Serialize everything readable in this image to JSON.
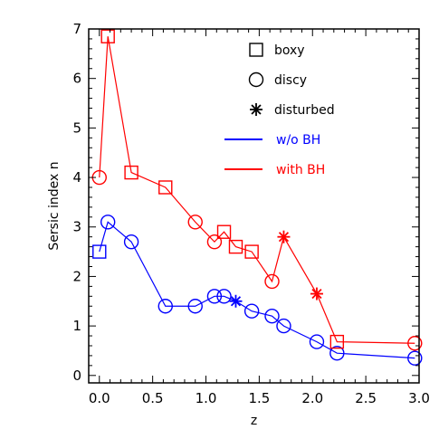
{
  "chart_data": {
    "type": "scatter",
    "xlabel": "z",
    "ylabel": "Sersic index n",
    "xlim": [
      -0.1,
      3.0
    ],
    "ylim": [
      -0.15,
      7.0
    ],
    "xticks": [
      "0.0",
      "0.5",
      "1.0",
      "1.5",
      "2.0",
      "2.5",
      "3.0"
    ],
    "yticks": [
      "0",
      "1",
      "2",
      "3",
      "4",
      "5",
      "6",
      "7"
    ],
    "grid": false,
    "legend": {
      "position": "top-right",
      "entries": [
        {
          "marker": "square",
          "label": "boxy",
          "color": "#000000"
        },
        {
          "marker": "circle",
          "label": "discy",
          "color": "#000000"
        },
        {
          "marker": "asterisk",
          "label": "disturbed",
          "color": "#000000"
        },
        {
          "line": true,
          "label": "w/o BH",
          "color": "#0000ff"
        },
        {
          "line": true,
          "label": "with BH",
          "color": "#ff0000"
        }
      ]
    },
    "series": [
      {
        "name": "w/o BH",
        "color": "#0000ff",
        "points": [
          {
            "x": 0.0,
            "y": 2.5,
            "marker": "square"
          },
          {
            "x": 0.08,
            "y": 3.1,
            "marker": "circle"
          },
          {
            "x": 0.3,
            "y": 2.7,
            "marker": "circle"
          },
          {
            "x": 0.62,
            "y": 1.4,
            "marker": "circle"
          },
          {
            "x": 0.9,
            "y": 1.4,
            "marker": "circle"
          },
          {
            "x": 1.08,
            "y": 1.6,
            "marker": "circle"
          },
          {
            "x": 1.17,
            "y": 1.6,
            "marker": "circle"
          },
          {
            "x": 1.28,
            "y": 1.5,
            "marker": "asterisk"
          },
          {
            "x": 1.43,
            "y": 1.3,
            "marker": "circle"
          },
          {
            "x": 1.62,
            "y": 1.2,
            "marker": "circle"
          },
          {
            "x": 1.73,
            "y": 1.0,
            "marker": "circle"
          },
          {
            "x": 2.04,
            "y": 0.68,
            "marker": "circle"
          },
          {
            "x": 2.23,
            "y": 0.45,
            "marker": "circle"
          },
          {
            "x": 2.96,
            "y": 0.35,
            "marker": "circle"
          }
        ]
      },
      {
        "name": "with BH",
        "color": "#ff0000",
        "points": [
          {
            "x": 0.0,
            "y": 4.0,
            "marker": "circle"
          },
          {
            "x": 0.08,
            "y": 6.85,
            "marker": "square"
          },
          {
            "x": 0.3,
            "y": 4.1,
            "marker": "square"
          },
          {
            "x": 0.62,
            "y": 3.8,
            "marker": "square"
          },
          {
            "x": 0.9,
            "y": 3.1,
            "marker": "circle"
          },
          {
            "x": 1.08,
            "y": 2.7,
            "marker": "circle"
          },
          {
            "x": 1.17,
            "y": 2.9,
            "marker": "square"
          },
          {
            "x": 1.28,
            "y": 2.6,
            "marker": "square"
          },
          {
            "x": 1.43,
            "y": 2.5,
            "marker": "square"
          },
          {
            "x": 1.62,
            "y": 1.9,
            "marker": "circle"
          },
          {
            "x": 1.73,
            "y": 2.8,
            "marker": "asterisk"
          },
          {
            "x": 2.04,
            "y": 1.65,
            "marker": "asterisk"
          },
          {
            "x": 2.23,
            "y": 0.68,
            "marker": "square"
          },
          {
            "x": 2.96,
            "y": 0.65,
            "marker": "circle"
          }
        ]
      }
    ]
  }
}
